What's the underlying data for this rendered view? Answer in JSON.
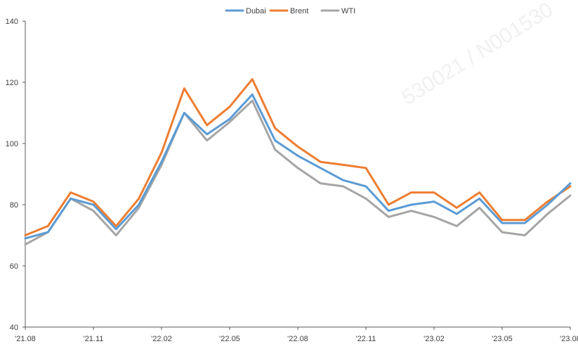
{
  "watermark": "530021 / N001530",
  "chart_data": {
    "type": "line",
    "title": "",
    "xlabel": "",
    "ylabel": "",
    "ylim": [
      40,
      140
    ],
    "yticks": [
      40,
      60,
      80,
      100,
      120,
      140
    ],
    "x_tick_labels": [
      "'21.08",
      "'21.11",
      "'22.02",
      "'22.05",
      "'22.08",
      "'22.11",
      "'23.02",
      "'23.05",
      "'23.08"
    ],
    "x_range": [
      "2021-08",
      "2023-08"
    ],
    "grid": false,
    "legend_position": "top-center",
    "months": [
      "2021-08",
      "2021-09",
      "2021-10",
      "2021-11",
      "2021-12",
      "2022-01",
      "2022-02",
      "2022-03",
      "2022-04",
      "2022-05",
      "2022-06",
      "2022-07",
      "2022-08",
      "2022-09",
      "2022-10",
      "2022-11",
      "2022-12",
      "2023-01",
      "2023-02",
      "2023-03",
      "2023-04",
      "2023-05",
      "2023-06",
      "2023-07",
      "2023-08"
    ],
    "series": [
      {
        "name": "Dubai",
        "color": "#5b9bd5",
        "values": [
          69,
          71,
          82,
          80,
          72,
          80,
          94,
          110,
          103,
          108,
          116,
          101,
          96,
          92,
          88,
          86,
          78,
          80,
          81,
          77,
          82,
          74,
          74,
          80,
          87
        ]
      },
      {
        "name": "Brent",
        "color": "#ed7d31",
        "values": [
          70,
          73,
          84,
          81,
          73,
          82,
          97,
          118,
          106,
          112,
          121,
          105,
          99,
          94,
          93,
          92,
          80,
          84,
          84,
          79,
          84,
          75,
          75,
          81,
          86
        ]
      },
      {
        "name": "WTI",
        "color": "#a5a5a5",
        "values": [
          67,
          71,
          82,
          78,
          70,
          79,
          93,
          110,
          101,
          107,
          114,
          98,
          92,
          87,
          86,
          82,
          76,
          78,
          76,
          73,
          79,
          71,
          70,
          77,
          83
        ]
      }
    ]
  }
}
